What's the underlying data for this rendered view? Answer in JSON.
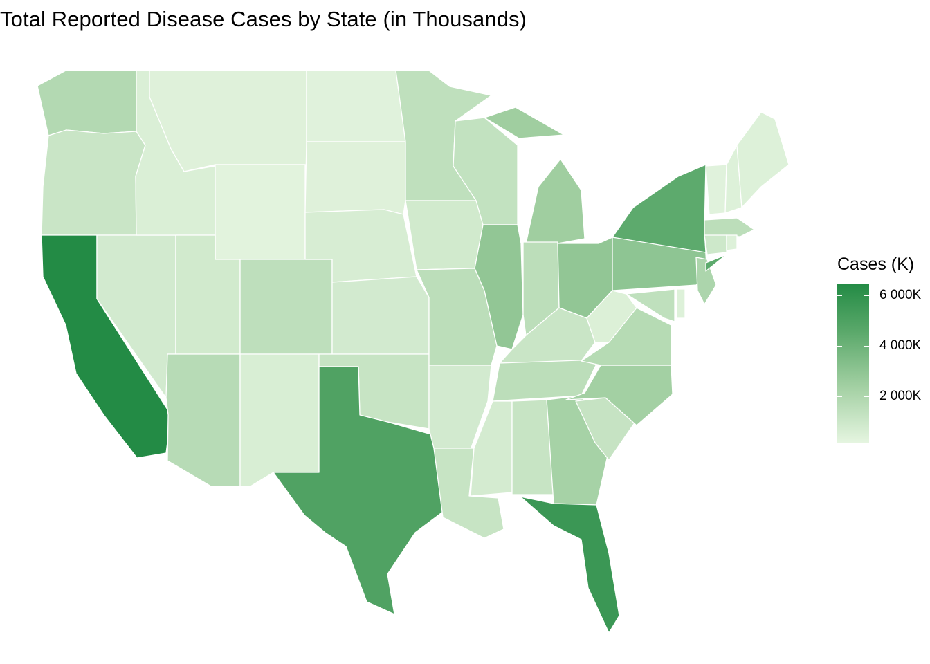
{
  "title": "Total Reported Disease Cases by State (in Thousands)",
  "legend": {
    "title": "Cases (K)",
    "ticks": [
      "6 000K",
      "4 000K",
      "2 000K"
    ],
    "tick_values": [
      6000,
      4000,
      2000
    ],
    "min": 0,
    "max": 6300,
    "colors": [
      "#e5f5e0",
      "#a3d0a3",
      "#5aa86a",
      "#238b45"
    ]
  },
  "map": {
    "type": "choropleth",
    "region": "contiguous United States",
    "value_note": "values estimated from fill color",
    "states": {
      "WA": 1600,
      "OR": 900,
      "CA": 6300,
      "NV": 600,
      "ID": 350,
      "MT": 200,
      "WY": 100,
      "UT": 650,
      "AZ": 1450,
      "CO": 1250,
      "NM": 400,
      "ND": 150,
      "SD": 200,
      "NE": 450,
      "KS": 600,
      "OK": 950,
      "TX": 4600,
      "MN": 1200,
      "IA": 650,
      "MO": 1300,
      "AR": 600,
      "LA": 950,
      "WI": 1100,
      "IL": 2600,
      "MI": 2200,
      "IN": 1300,
      "OH": 2600,
      "KY": 900,
      "TN": 1300,
      "MS": 550,
      "AL": 950,
      "GA": 2000,
      "FL": 5400,
      "SC": 1000,
      "NC": 2100,
      "VA": 1500,
      "WV": 300,
      "PA": 2700,
      "NY": 4100,
      "VT": 150,
      "NH": 250,
      "ME": 250,
      "MA": 1300,
      "CT": 750,
      "RI": 250,
      "NJ": 1800,
      "DE": 250,
      "MD": 1200
    }
  }
}
